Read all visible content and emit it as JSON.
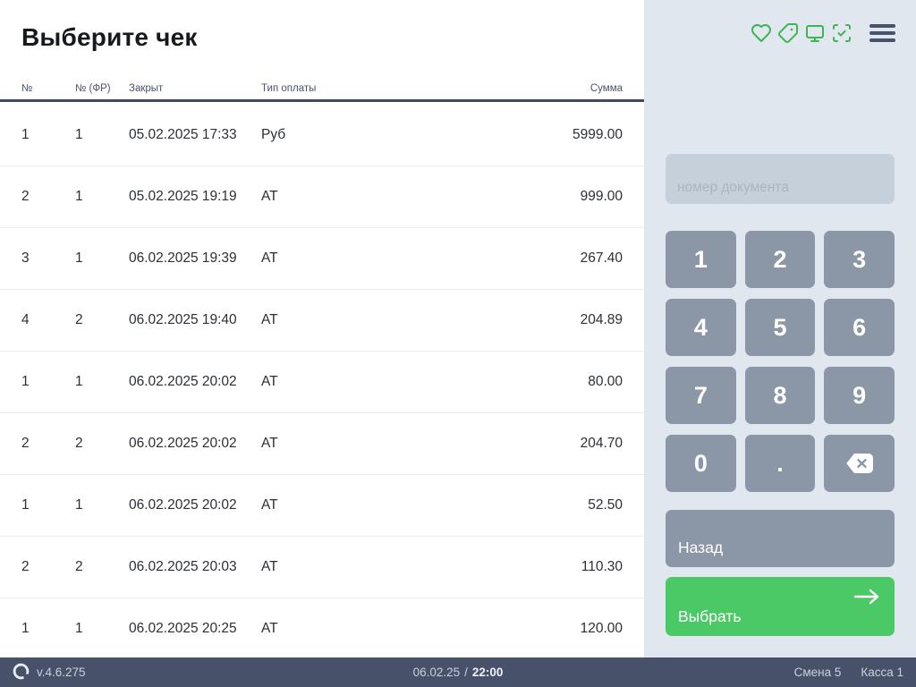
{
  "title": "Выберите чек",
  "table": {
    "columns": [
      "№",
      "№ (ФР)",
      "Закрыт",
      "Тип оплаты",
      "Сумма"
    ],
    "rows": [
      {
        "num": "1",
        "num_fr": "1",
        "closed": "05.02.2025 17:33",
        "payment": "Руб",
        "sum": "5999.00"
      },
      {
        "num": "2",
        "num_fr": "1",
        "closed": "05.02.2025 19:19",
        "payment": "АТ",
        "sum": "999.00"
      },
      {
        "num": "3",
        "num_fr": "1",
        "closed": "06.02.2025 19:39",
        "payment": "АТ",
        "sum": "267.40"
      },
      {
        "num": "4",
        "num_fr": "2",
        "closed": "06.02.2025 19:40",
        "payment": "АТ",
        "sum": "204.89"
      },
      {
        "num": "1",
        "num_fr": "1",
        "closed": "06.02.2025 20:02",
        "payment": "АТ",
        "sum": "80.00"
      },
      {
        "num": "2",
        "num_fr": "2",
        "closed": "06.02.2025 20:02",
        "payment": "АТ",
        "sum": "204.70"
      },
      {
        "num": "1",
        "num_fr": "1",
        "closed": "06.02.2025 20:02",
        "payment": "АТ",
        "sum": "52.50"
      },
      {
        "num": "2",
        "num_fr": "2",
        "closed": "06.02.2025 20:03",
        "payment": "АТ",
        "sum": "110.30"
      },
      {
        "num": "1",
        "num_fr": "1",
        "closed": "06.02.2025 20:25",
        "payment": "АТ",
        "sum": "120.00"
      }
    ]
  },
  "topbar": {
    "icons": [
      "heart-icon",
      "tag-icon",
      "monitor-icon",
      "scan-check-icon",
      "menu-icon"
    ]
  },
  "keypad": {
    "placeholder": "номер документа",
    "input_value": "",
    "keys": [
      "1",
      "2",
      "3",
      "4",
      "5",
      "6",
      "7",
      "8",
      "9",
      "0",
      "."
    ],
    "backspace_icon": "backspace-icon",
    "back_label": "Назад",
    "select_label": "Выбрать",
    "select_icon": "arrow-right-icon"
  },
  "statusbar": {
    "version": "v.4.6.275",
    "date": "06.02.25",
    "separator": "/",
    "time": "22:00",
    "shift": "Смена 5",
    "register": "Касса 1"
  },
  "colors": {
    "accent_green": "#4cc967",
    "icon_green": "#3cb553",
    "key_gray": "#8b97a7",
    "panel_bg": "#e1e7ee",
    "input_bg": "#c6d0db",
    "statusbar_bg": "#475169",
    "header_border": "#3e4a61"
  }
}
